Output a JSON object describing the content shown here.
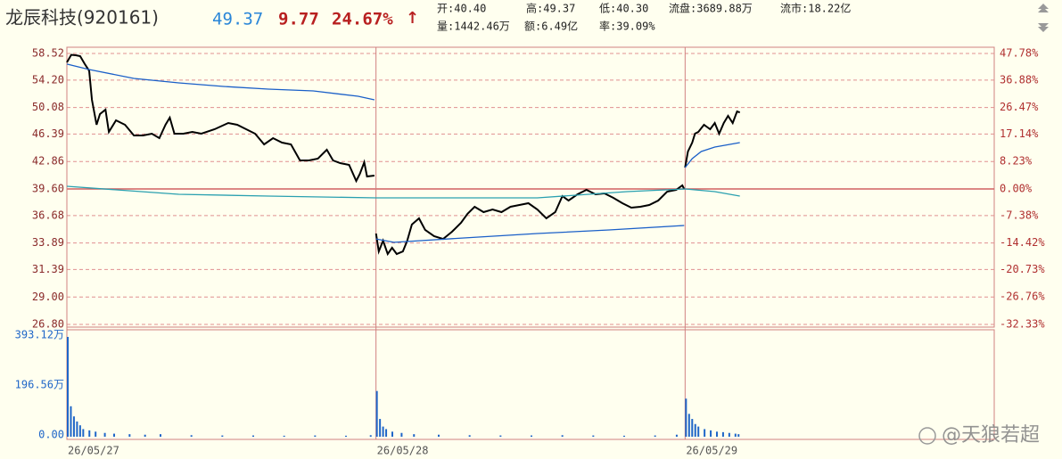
{
  "header": {
    "name": "龙辰科技(920161)",
    "price": "49.37",
    "change": "9.77",
    "pct": "24.67%",
    "arrow": "↑",
    "open": "开:40.40",
    "high": "高:49.37",
    "low": "低:40.30",
    "float_shares": "流盘:3689.88万",
    "float_cap": "流市:18.22亿",
    "volume": "量:1442.46万",
    "amount": "额:6.49亿",
    "turnover": "率:39.09%"
  },
  "watermark": "@天狼若超",
  "chart_data": [
    {
      "type": "line",
      "log": true,
      "grid": true,
      "xlim": [
        0,
        3
      ],
      "xticks": [
        {
          "value": 0,
          "label": "26/05/27"
        },
        {
          "value": 1,
          "label": "26/05/28"
        },
        {
          "value": 2,
          "label": "26/05/29"
        }
      ],
      "ylim": [
        26.8,
        58.52
      ],
      "yticks": [
        58.52,
        {
          "value": 54.2,
          "label": "54.20"
        },
        50.08,
        46.39,
        42.86,
        {
          "value": 39.6,
          "label": "39.60"
        },
        36.68,
        33.89,
        31.39,
        {
          "value": 29.0,
          "label": "29.00"
        },
        {
          "value": 26.8,
          "label": "26.80"
        }
      ],
      "y2lim": [
        -32.33,
        47.78
      ],
      "y2ticks": [
        {
          "value": 47.78,
          "label": "47.78%"
        },
        {
          "value": 36.88,
          "label": "36.88%"
        },
        {
          "value": 26.47,
          "label": "26.47%"
        },
        {
          "value": 17.14,
          "label": "17.14%"
        },
        {
          "value": 8.23,
          "label": "8.23%"
        },
        {
          "value": 0,
          "label": "0.00%"
        },
        {
          "value": -7.38,
          "label": "-7.38%"
        },
        {
          "value": -14.42,
          "label": "-14.42%"
        },
        {
          "value": -20.73,
          "label": "-20.73%"
        },
        {
          "value": -26.76,
          "label": "-26.76%"
        },
        {
          "value": -32.33,
          "label": "-32.33%"
        }
      ],
      "series": [
        {
          "color": "#000000",
          "x": [
            0,
            0.014,
            0.029,
            0.043,
            0.058,
            0.072,
            0.081,
            0.096,
            0.107,
            0.125,
            0.136,
            0.159,
            0.188,
            0.217,
            0.246,
            0.275,
            0.299,
            0.319,
            0.333,
            0.348,
            0.377,
            0.406,
            0.435,
            0.478,
            0.522,
            0.551,
            0.58,
            0.609,
            0.638,
            0.667,
            0.696,
            0.725,
            0.754,
            0.783,
            0.812,
            0.841,
            0.861,
            0.884,
            0.913,
            0.936,
            0.948,
            0.962,
            0.971,
            0.995,
            null,
            1,
            1.009,
            1.023,
            1.038,
            1.052,
            1.067,
            1.087,
            1.101,
            1.116,
            1.139,
            1.159,
            1.188,
            1.217,
            1.246,
            1.275,
            1.296,
            1.319,
            1.348,
            1.377,
            1.406,
            1.435,
            1.464,
            1.493,
            1.522,
            1.551,
            1.58,
            1.603,
            1.623,
            1.652,
            1.681,
            1.71,
            1.739,
            1.768,
            1.797,
            1.826,
            1.855,
            1.884,
            1.913,
            1.942,
            1.971,
            1.991,
            1.997,
            null,
            2,
            2.009,
            2.023,
            2.032,
            2.043,
            2.061,
            2.081,
            2.096,
            2.11,
            2.125,
            2.139,
            2.154,
            2.168,
            2.177
          ],
          "values": [
            57.03,
            58.3,
            58.22,
            58.07,
            56.76,
            55.67,
            51.2,
            47.65,
            49.14,
            49.78,
            46.68,
            48.26,
            47.65,
            46.2,
            46.2,
            46.44,
            45.85,
            47.65,
            48.64,
            46.44,
            46.44,
            46.68,
            46.44,
            47.04,
            47.89,
            47.65,
            47.04,
            46.44,
            45.03,
            45.85,
            45.26,
            45.03,
            42.99,
            42.99,
            43.22,
            44.34,
            42.99,
            42.67,
            42.45,
            40.53,
            41.37,
            42.78,
            41.05,
            41.16,
            null,
            34.83,
            33.08,
            34.12,
            32.83,
            33.43,
            32.83,
            33.08,
            34.12,
            35.74,
            36.38,
            35.19,
            34.56,
            34.29,
            35.01,
            35.92,
            36.86,
            37.62,
            37.04,
            37.33,
            37.04,
            37.62,
            37.81,
            38.01,
            37.33,
            36.38,
            37.04,
            38.8,
            38.3,
            39.0,
            39.5,
            39.0,
            39.1,
            38.6,
            38.01,
            37.52,
            37.62,
            37.81,
            38.3,
            39.3,
            39.5,
            40.01,
            39.6,
            null,
            42.12,
            44.11,
            45.26,
            46.44,
            46.68,
            47.65,
            47.04,
            47.89,
            46.44,
            47.89,
            48.89,
            47.89,
            49.52,
            49.37
          ]
        },
        {
          "color": "#1a5fc8",
          "x": [
            0,
            0.072,
            0.217,
            0.362,
            0.507,
            0.652,
            0.797,
            0.942,
            0.995,
            null,
            1,
            1.058,
            1.145,
            1.29,
            1.522,
            1.754,
            1.997,
            null,
            2,
            2.023,
            2.052,
            2.096,
            2.177
          ],
          "values": [
            56.76,
            55.88,
            54.46,
            53.76,
            53.22,
            52.8,
            52.53,
            51.73,
            51.2,
            null,
            34.29,
            33.95,
            34.12,
            34.39,
            34.83,
            35.19,
            35.64,
            null,
            42.12,
            43.22,
            44.11,
            44.69,
            45.26
          ]
        },
        {
          "color": "#2aa0b0",
          "x": [
            0,
            0.362,
            0.652,
            1.0,
            1.522,
            1.812,
            2.0,
            2.096,
            2.177
          ],
          "values": [
            39.91,
            39.0,
            38.8,
            38.6,
            38.6,
            39.3,
            39.6,
            39.3,
            38.8
          ]
        }
      ]
    },
    {
      "type": "bar",
      "color": "#1f66c8",
      "xlim": [
        0,
        3
      ],
      "ylim": [
        0,
        393.12
      ],
      "yticks": [
        {
          "value": 0,
          "label": "0.00"
        },
        {
          "value": 196.56,
          "label": "196.56万"
        },
        {
          "value": 393.12,
          "label": "393.12万"
        }
      ],
      "x": [
        0,
        0.01,
        0.02,
        0.03,
        0.04,
        0.05,
        0.07,
        0.09,
        0.12,
        0.15,
        0.2,
        0.25,
        0.3,
        0.4,
        0.5,
        0.6,
        0.7,
        0.8,
        0.9,
        0.98,
        1,
        1.01,
        1.02,
        1.03,
        1.05,
        1.08,
        1.12,
        1.2,
        1.3,
        1.4,
        1.5,
        1.6,
        1.7,
        1.8,
        1.9,
        1.97,
        2,
        2.01,
        2.02,
        2.03,
        2.04,
        2.06,
        2.08,
        2.1,
        2.12,
        2.14,
        2.16,
        2.17
      ],
      "values": [
        393.12,
        120,
        80,
        60,
        45,
        30,
        25,
        20,
        15,
        12,
        10,
        8,
        10,
        6,
        5,
        5,
        4,
        5,
        4,
        6,
        180,
        70,
        40,
        30,
        20,
        15,
        10,
        8,
        6,
        5,
        5,
        6,
        5,
        4,
        5,
        8,
        150,
        90,
        70,
        50,
        40,
        30,
        25,
        20,
        18,
        15,
        12,
        10
      ]
    }
  ]
}
